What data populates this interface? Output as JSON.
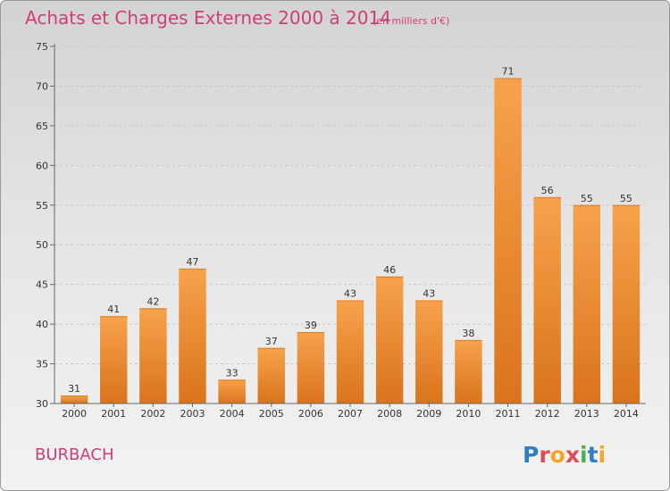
{
  "chart_data": {
    "type": "bar",
    "title": "Achats et Charges Externes 2000 à 2014",
    "unit_note": "(en milliers d'€)",
    "categories": [
      "2000",
      "2001",
      "2002",
      "2003",
      "2004",
      "2005",
      "2006",
      "2007",
      "2008",
      "2009",
      "2010",
      "2011",
      "2012",
      "2013",
      "2014"
    ],
    "values": [
      31,
      41,
      42,
      47,
      33,
      37,
      39,
      43,
      46,
      43,
      38,
      71,
      56,
      55,
      55
    ],
    "ylim": [
      30,
      75
    ],
    "yticks": [
      30,
      35,
      40,
      45,
      50,
      55,
      60,
      65,
      70,
      75
    ],
    "grid": true,
    "bar_color": "#f28c2a",
    "xlabel": "",
    "ylabel": ""
  },
  "commune_label": "BURBACH",
  "brand": {
    "letters": [
      "P",
      "r",
      "o",
      "x",
      "i",
      "t",
      "i"
    ],
    "colors": [
      "#2f7fc1",
      "#e04b5b",
      "#f5a623",
      "#e04b5b",
      "#4caf50",
      "#2f7fc1",
      "#f5a623"
    ]
  }
}
